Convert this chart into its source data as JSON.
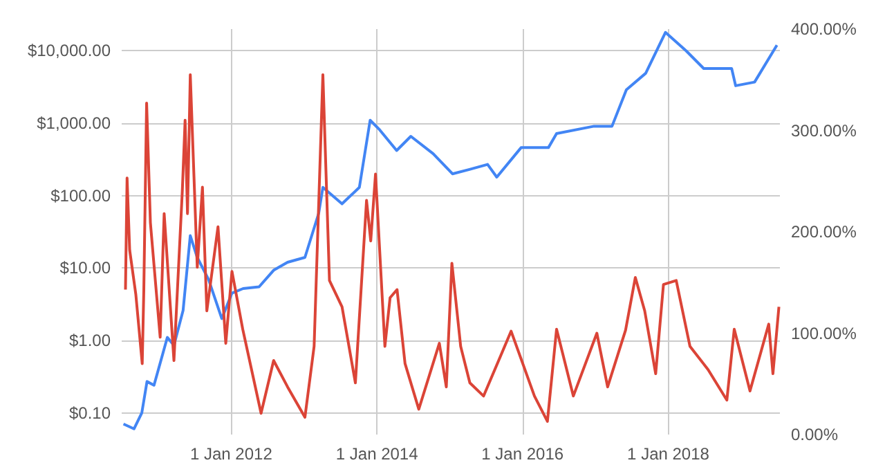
{
  "chart_data": {
    "type": "line",
    "xlim": [
      "2010-07-01",
      "2019-07-15"
    ],
    "xticks": [
      {
        "value": "2012-01-01",
        "label": "1 Jan 2012"
      },
      {
        "value": "2014-01-01",
        "label": "1 Jan 2014"
      },
      {
        "value": "2016-01-01",
        "label": "1 Jan 2016"
      },
      {
        "value": "2018-01-01",
        "label": "1 Jan 2018"
      }
    ],
    "log": "y",
    "ylim": [
      0.05,
      20000
    ],
    "yticks": [
      {
        "value": 0.1,
        "label": "$0.10"
      },
      {
        "value": 1,
        "label": "$1.00"
      },
      {
        "value": 10,
        "label": "$10.00"
      },
      {
        "value": 100,
        "label": "$100.00"
      },
      {
        "value": 1000,
        "label": "$1,000.00"
      },
      {
        "value": 10000,
        "label": "$10,000.00"
      }
    ],
    "y2lim": [
      0,
      400
    ],
    "y2ticks": [
      {
        "value": 0,
        "label": "0.00%"
      },
      {
        "value": 100,
        "label": "100.00%"
      },
      {
        "value": 200,
        "label": "200.00%"
      },
      {
        "value": 300,
        "label": "300.00%"
      },
      {
        "value": 400,
        "label": "400.00%"
      }
    ],
    "grid": true,
    "series": [
      {
        "color": "#4285f4",
        "x": [
          "2010-07-10",
          "2010-09-01",
          "2010-10-10",
          "2010-11-05",
          "2010-12-10",
          "2011-02-15",
          "2011-03-20",
          "2011-05-05",
          "2011-06-10",
          "2011-07-15",
          "2011-09-10",
          "2011-11-15",
          "2012-01-05",
          "2012-03-01",
          "2012-05-20",
          "2012-08-01",
          "2012-10-10",
          "2013-01-05",
          "2013-03-15",
          "2013-04-05",
          "2013-07-10",
          "2013-10-05",
          "2013-11-28",
          "2014-01-15",
          "2014-04-10",
          "2014-06-20",
          "2014-10-10",
          "2015-01-15",
          "2015-04-10",
          "2015-07-10",
          "2015-08-25",
          "2015-12-25",
          "2016-05-10",
          "2016-06-20",
          "2016-12-25",
          "2017-03-25",
          "2017-06-05",
          "2017-09-10",
          "2017-12-18",
          "2018-04-01",
          "2018-06-28",
          "2018-11-15",
          "2018-12-05",
          "2019-03-10",
          "2019-06-30"
        ],
        "values": [
          0.07,
          0.06,
          0.1,
          0.27,
          0.24,
          1.1,
          0.85,
          2.6,
          28,
          14,
          6.9,
          2,
          4.5,
          5.2,
          5.5,
          9.3,
          12,
          14,
          57,
          130,
          77,
          130,
          1100,
          810,
          420,
          660,
          380,
          200,
          230,
          270,
          180,
          460,
          460,
          720,
          910,
          910,
          2900,
          4900,
          18000,
          10000,
          5700,
          5700,
          3300,
          3700,
          12000
        ]
      },
      {
        "color": "#db4437",
        "axis": "y2",
        "x": [
          "2010-07-20",
          "2010-07-28",
          "2010-08-10",
          "2010-09-10",
          "2010-10-12",
          "2010-10-20",
          "2010-11-03",
          "2010-11-22",
          "2011-01-10",
          "2011-01-30",
          "2011-03-20",
          "2011-05-01",
          "2011-05-15",
          "2011-05-27",
          "2011-06-10",
          "2011-07-15",
          "2011-08-10",
          "2011-09-01",
          "2011-10-27",
          "2011-12-05",
          "2012-01-05",
          "2012-02-28",
          "2012-05-30",
          "2012-08-01",
          "2012-10-10",
          "2013-01-05",
          "2013-02-20",
          "2013-04-05",
          "2013-05-08",
          "2013-07-10",
          "2013-09-15",
          "2013-11-10",
          "2013-12-01",
          "2013-12-25",
          "2014-02-10",
          "2014-03-08",
          "2014-04-12",
          "2014-05-22",
          "2014-07-30",
          "2014-11-10",
          "2014-12-15",
          "2015-01-12",
          "2015-02-25",
          "2015-04-12",
          "2015-06-20",
          "2015-11-05",
          "2016-03-01",
          "2016-05-05",
          "2016-06-20",
          "2016-09-12",
          "2017-01-08",
          "2017-03-03",
          "2017-06-01",
          "2017-07-20",
          "2017-09-05",
          "2017-10-30",
          "2017-12-08",
          "2018-02-10",
          "2018-04-20",
          "2018-07-20",
          "2018-10-22",
          "2018-11-28",
          "2019-02-15",
          "2019-05-20",
          "2019-06-10",
          "2019-07-10"
        ],
        "values": [
          143,
          253,
          182,
          138,
          70,
          143,
          327,
          209,
          96,
          218,
          73,
          240,
          310,
          218,
          355,
          165,
          244,
          122,
          205,
          90,
          161,
          104,
          21,
          73,
          47,
          17,
          87,
          355,
          152,
          126,
          51,
          231,
          191,
          257,
          87,
          135,
          143,
          70,
          25,
          90,
          47,
          169,
          87,
          51,
          38,
          102,
          38,
          13,
          104,
          38,
          100,
          47,
          103,
          155,
          122,
          60,
          148,
          152,
          87,
          64,
          34,
          104,
          43,
          109,
          60,
          126
        ]
      }
    ]
  }
}
